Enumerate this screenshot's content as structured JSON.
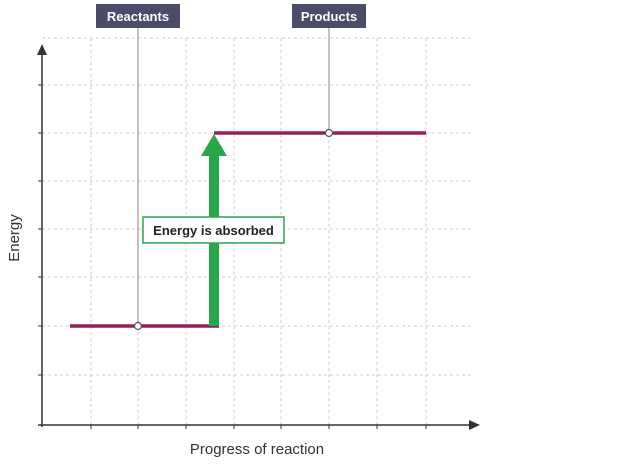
{
  "diagram": {
    "xlabel": "Progress of reaction",
    "ylabel": "Energy",
    "reactants_label": "Reactants",
    "products_label": "Products",
    "annotation": "Energy is absorbed",
    "reactants_level": 1,
    "products_level": 3,
    "grid": true,
    "colors": {
      "level_line": "#9c1b5c",
      "arrow": "#2aa54a",
      "callout_bg": "#4b4c6a",
      "callout_line": "#999999",
      "annotation_border": "#2aa54a",
      "grid": "#cccccc",
      "axis": "#333333"
    }
  }
}
